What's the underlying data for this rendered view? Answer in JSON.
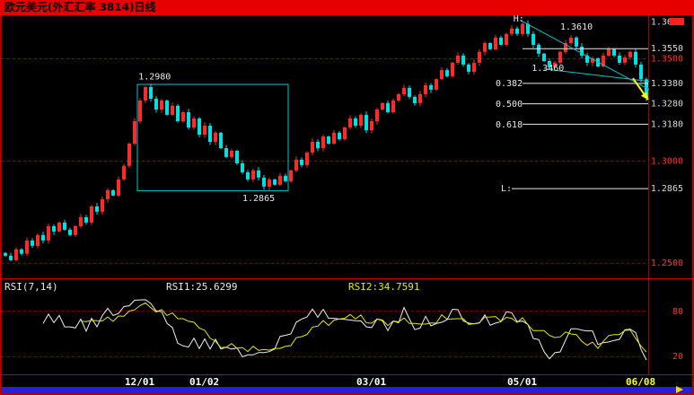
{
  "title": {
    "text": "欧元美元(外汇汇率 3814)日线"
  },
  "colors": {
    "titlebar_bg": "#e60000",
    "titlebar_text": "#000000",
    "background": "#000000",
    "frame": "#b00000",
    "up": "#ff2a2a",
    "down": "#00e0e0",
    "grid": "#a00000",
    "box": "#00c8c8",
    "trendline": "#00c8c8",
    "fib_line": "#e8e8e8",
    "annotation_text": "#e8e8e8",
    "axis_white": "#d8d8d8",
    "axis_red": "#ff3232",
    "rsi1": "#f0f0f0",
    "rsi2": "#e8e800",
    "arrow": "#ffff00",
    "bottom_bar": "#2222dd",
    "scale_marker": "#ff2222"
  },
  "rsi_panel": {
    "indicator_label": "RSI(7,14)",
    "rsi1_label": "RSI1:25.6299",
    "rsi2_label": "RSI2:34.7591",
    "periods": [
      7,
      14
    ],
    "ylim": [
      0,
      100
    ],
    "levels": [
      {
        "label": "80",
        "value": 80
      },
      {
        "label": "20",
        "value": 20
      }
    ]
  },
  "chart_data": {
    "type": "candlestick",
    "title": "欧元美元(外汇汇率 3814)日线",
    "ylim": [
      1.2435,
      1.37
    ],
    "first_open": 1.255,
    "wick": 0.0014,
    "closes": [
      1.2537,
      1.2515,
      1.2568,
      1.2546,
      1.2611,
      1.2585,
      1.2638,
      1.2611,
      1.2681,
      1.2655,
      1.2699,
      1.2664,
      1.2638,
      1.2681,
      1.2725,
      1.2699,
      1.2778,
      1.2752,
      1.2813,
      1.2857,
      1.2831,
      1.291,
      1.2976,
      1.3085,
      1.3195,
      1.3296,
      1.3362,
      1.3305,
      1.3252,
      1.3296,
      1.3226,
      1.327,
      1.3195,
      1.3239,
      1.3164,
      1.3208,
      1.3129,
      1.3173,
      1.3094,
      1.3138,
      1.3063,
      1.302,
      1.305,
      1.2989,
      1.2945,
      1.291,
      1.2954,
      1.2919,
      1.2875,
      1.291,
      1.2884,
      1.2928,
      1.2901,
      1.2954,
      1.3007,
      1.298,
      1.3041,
      1.3094,
      1.3063,
      1.312,
      1.3085,
      1.3138,
      1.3107,
      1.3164,
      1.3208,
      1.3173,
      1.3226,
      1.3151,
      1.3195,
      1.3252,
      1.3283,
      1.3239,
      1.3296,
      1.3327,
      1.3358,
      1.3314,
      1.3283,
      1.3327,
      1.3371,
      1.3349,
      1.3401,
      1.3445,
      1.3415,
      1.3481,
      1.3516,
      1.3472,
      1.3437,
      1.3481,
      1.3534,
      1.3577,
      1.3547,
      1.3604,
      1.3569,
      1.3622,
      1.3648,
      1.3622,
      1.3671,
      1.3622,
      1.3569,
      1.3525,
      1.3489,
      1.3459,
      1.3481,
      1.3534,
      1.3577,
      1.3604,
      1.356,
      1.3516,
      1.3481,
      1.3503,
      1.3463,
      1.3516,
      1.3547,
      1.3516,
      1.3481,
      1.3507,
      1.3534,
      1.3472,
      1.34,
      1.331
    ],
    "gridlines": [
      1.35,
      1.3,
      1.25
    ],
    "price_axis": [
      {
        "label": "1.3680",
        "price": 1.368,
        "color": "white"
      },
      {
        "label": "1.3550",
        "price": 1.355,
        "color": "white"
      },
      {
        "label": "1.3500",
        "price": 1.35,
        "color": "red"
      },
      {
        "label": "1.3380",
        "price": 1.338,
        "color": "white"
      },
      {
        "label": "1.3280",
        "price": 1.328,
        "color": "white"
      },
      {
        "label": "1.3180",
        "price": 1.318,
        "color": "white"
      },
      {
        "label": "1.3000",
        "price": 1.3,
        "color": "red"
      },
      {
        "label": "1.2865",
        "price": 1.2865,
        "color": "white"
      },
      {
        "label": "1.2500",
        "price": 1.25,
        "color": "red"
      }
    ],
    "time_axis": [
      {
        "label": "12/01",
        "i": 25,
        "color": "#ffffff"
      },
      {
        "label": "01/02",
        "i": 37,
        "color": "#ffffff"
      },
      {
        "label": "03/01",
        "i": 68,
        "color": "#ffffff"
      },
      {
        "label": "05/01",
        "i": 96,
        "color": "#ffffff"
      },
      {
        "label": "06/08",
        "i": 118,
        "color": "#ffff00"
      }
    ],
    "annotations": {
      "box": {
        "i0": 25,
        "i1": 52,
        "top": 1.3375,
        "bottom": 1.2855,
        "top_label": "1.2980",
        "bottom_label": "1.2865"
      },
      "levels": [
        {
          "price": 1.355,
          "i0": 96
        },
        {
          "price": 1.338,
          "i0": 96
        },
        {
          "price": 1.328,
          "i0": 96
        },
        {
          "price": 1.318,
          "i0": 96
        },
        {
          "price": 1.2865,
          "i0": 94
        }
      ],
      "trendlines": [
        {
          "i0": 95.5,
          "p0": 1.369,
          "i1": 119.5,
          "p1": 1.335
        },
        {
          "i0": 100,
          "p0": 1.345,
          "i1": 119.5,
          "p1": 1.339
        }
      ],
      "arrow": {
        "i0": 116.5,
        "p0": 1.3405,
        "i1": 119.3,
        "p1": 1.33
      },
      "texts": [
        {
          "text": "1.2980",
          "i": 24.7,
          "price": 1.34
        },
        {
          "text": "1.2865",
          "i": 44,
          "price": 1.2804
        },
        {
          "text": "H:",
          "i": 94.3,
          "price": 1.3682
        },
        {
          "text": "L:",
          "i": 92,
          "price": 1.2853
        },
        {
          "text": "0.382",
          "i": 91,
          "price": 1.3366
        },
        {
          "text": "0.500",
          "i": 91,
          "price": 1.3265
        },
        {
          "text": "0.618",
          "i": 91,
          "price": 1.3164
        },
        {
          "text": "1.3460",
          "i": 97.7,
          "price": 1.3441
        },
        {
          "text": "1.3610",
          "i": 103,
          "price": 1.3643
        }
      ]
    }
  }
}
